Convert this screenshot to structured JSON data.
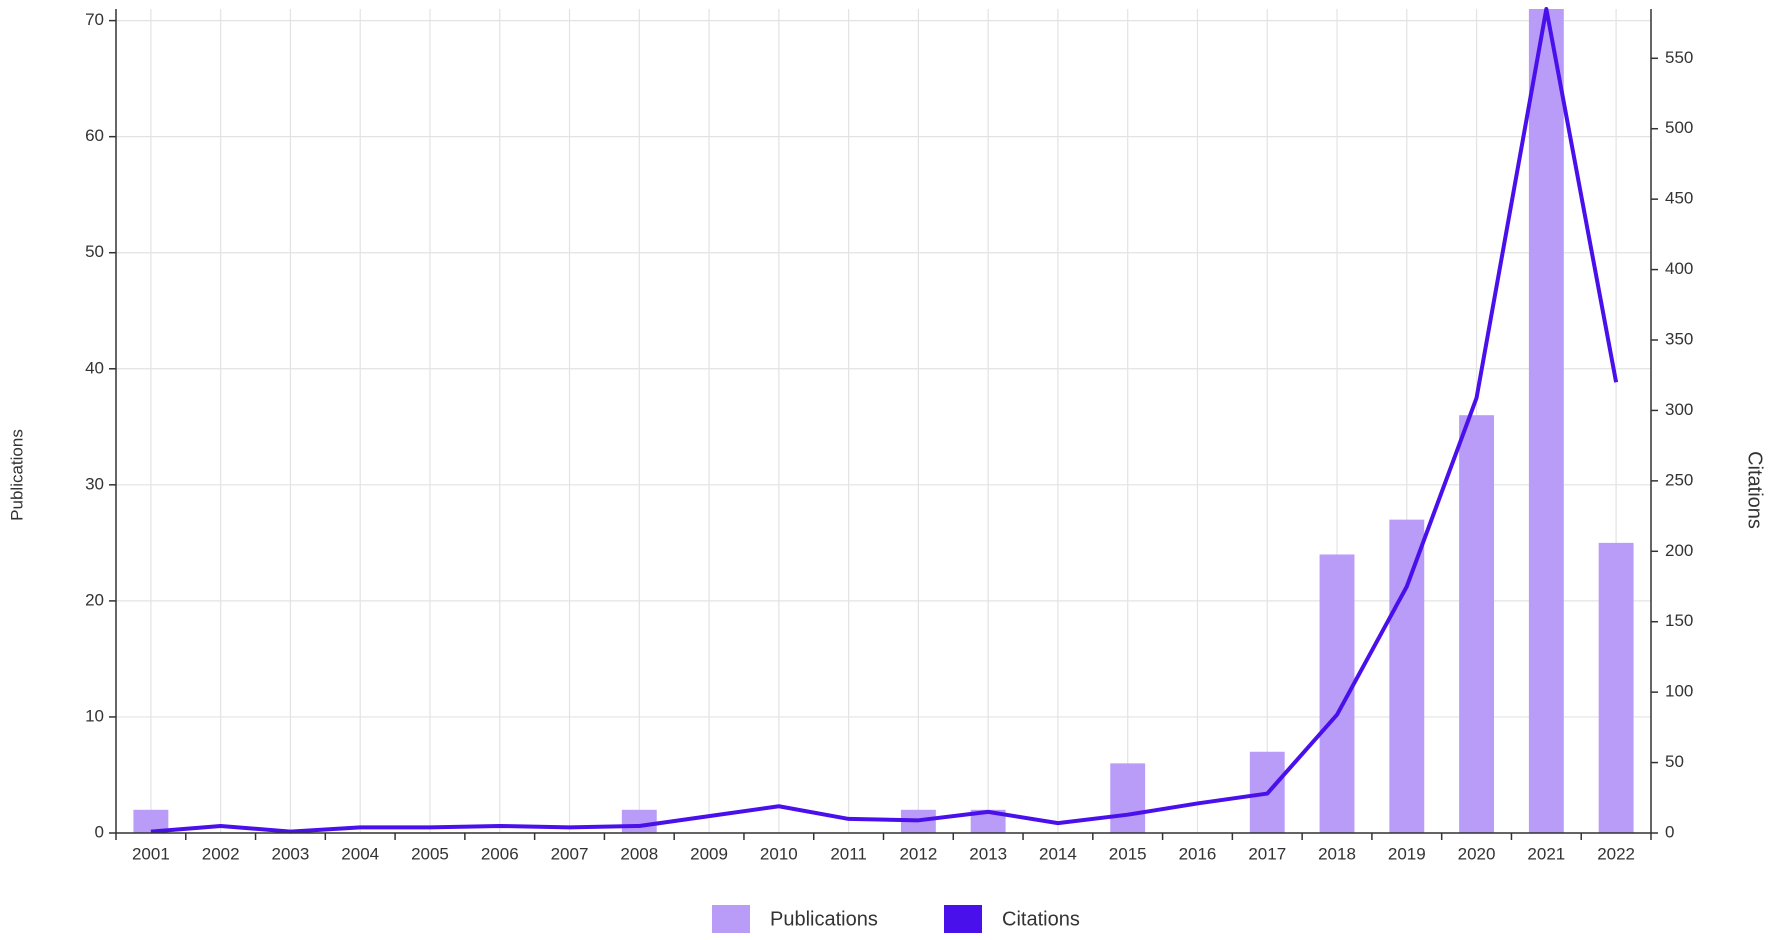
{
  "chart_data": {
    "type": "bar-line",
    "categories": [
      "2001",
      "2002",
      "2003",
      "2004",
      "2005",
      "2006",
      "2007",
      "2008",
      "2009",
      "2010",
      "2011",
      "2012",
      "2013",
      "2014",
      "2015",
      "2016",
      "2017",
      "2018",
      "2019",
      "2020",
      "2021",
      "2022"
    ],
    "y_label": "Publications",
    "y2_label": "Citations",
    "series": [
      {
        "name": "Publications",
        "type": "bar",
        "color": "#b89cf7",
        "values": [
          2,
          0,
          0,
          0,
          0,
          0,
          0,
          2,
          0,
          0,
          0,
          2,
          2,
          0,
          6,
          0,
          7,
          24,
          27,
          36,
          71,
          25
        ]
      },
      {
        "name": "Citations",
        "type": "line",
        "axis": "y2",
        "color": "#4a10eb",
        "values": [
          1,
          5,
          1,
          4,
          4,
          5,
          4,
          5,
          12,
          19,
          10,
          9,
          15,
          7,
          13,
          21,
          28,
          84,
          175,
          309,
          585,
          320
        ]
      }
    ],
    "ylim": [
      0,
      71
    ],
    "yticks": [
      0,
      10,
      20,
      30,
      40,
      50,
      60,
      70
    ],
    "y2lim": [
      0,
      585
    ],
    "y2ticks": [
      0,
      50,
      100,
      150,
      200,
      250,
      300,
      350,
      400,
      450,
      500,
      550
    ],
    "grid": true,
    "legend": "bottom"
  }
}
